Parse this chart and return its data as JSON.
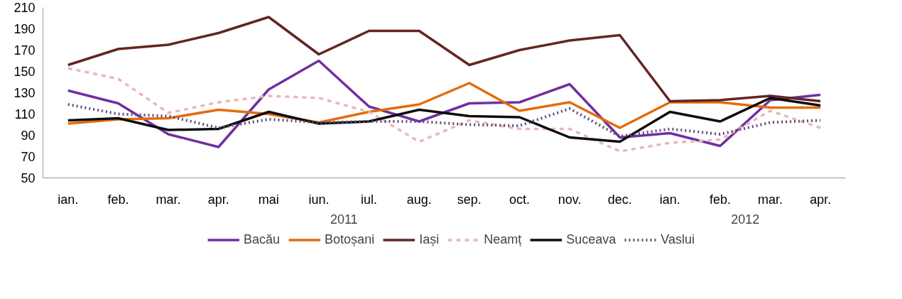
{
  "chart_data": {
    "type": "line",
    "categories": [
      "ian.",
      "feb.",
      "mar.",
      "apr.",
      "mai",
      "iun.",
      "iul.",
      "aug.",
      "sep.",
      "oct.",
      "nov.",
      "dec.",
      "ian.",
      "feb.",
      "mar.",
      "apr."
    ],
    "annotations": [
      "2011",
      "2012"
    ],
    "ylim": [
      50,
      210
    ],
    "yticks": [
      50,
      70,
      90,
      110,
      130,
      150,
      170,
      190,
      210
    ],
    "grid": false,
    "legend": "bottom",
    "series": [
      {
        "name": "Bacău",
        "color": "#7030a0",
        "values": [
          132,
          120,
          91,
          79,
          133,
          160,
          117,
          103,
          120,
          121,
          138,
          88,
          92,
          80,
          123,
          128
        ]
      },
      {
        "name": "Botoșani",
        "color": "#e36c0a",
        "values": [
          101,
          105,
          106,
          114,
          110,
          102,
          112,
          119,
          139,
          113,
          121,
          97,
          121,
          121,
          116,
          116
        ]
      },
      {
        "name": "Iași",
        "color": "#632523",
        "values": [
          156,
          171,
          175,
          186,
          201,
          166,
          188,
          188,
          156,
          170,
          179,
          184,
          122,
          123,
          127,
          122
        ]
      },
      {
        "name": "Neamț",
        "color": "#e6b9b8",
        "line_style": "dashed",
        "values": [
          153,
          143,
          111,
          121,
          127,
          125,
          112,
          84,
          104,
          96,
          96,
          75,
          83,
          86,
          113,
          97
        ]
      },
      {
        "name": "Suceava",
        "color": "#0d0d0d",
        "values": [
          104,
          106,
          95,
          96,
          112,
          101,
          103,
          114,
          108,
          107,
          88,
          84,
          112,
          103,
          125,
          118
        ]
      },
      {
        "name": "Vaslui",
        "color": "#604a7b",
        "line_style": "dotted",
        "values": [
          119,
          110,
          108,
          97,
          105,
          102,
          103,
          103,
          100,
          99,
          115,
          89,
          96,
          91,
          102,
          104
        ]
      }
    ]
  }
}
